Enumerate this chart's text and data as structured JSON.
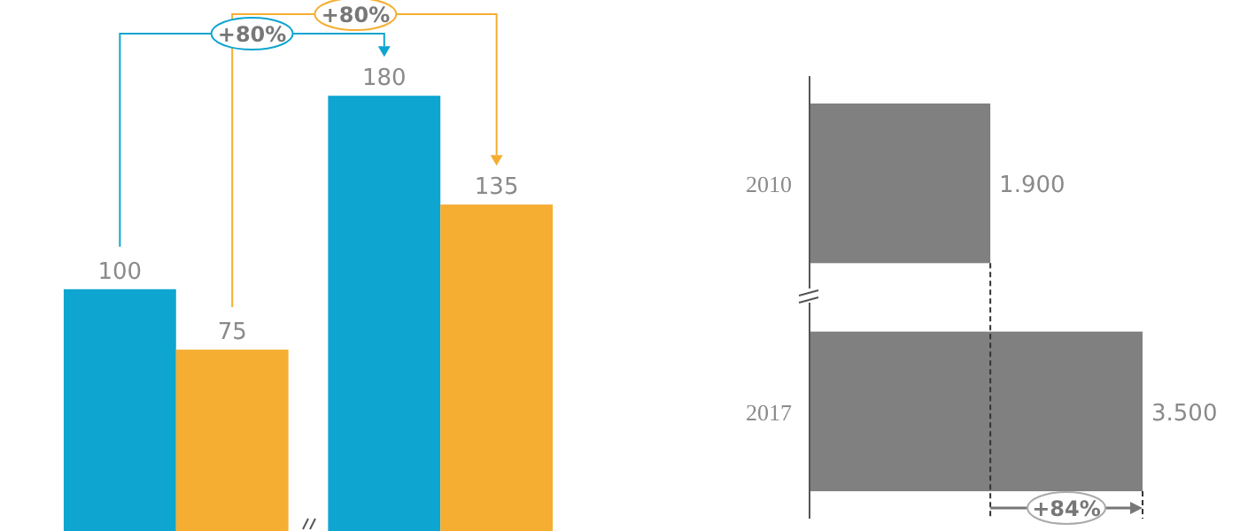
{
  "chart_data": [
    {
      "type": "bar",
      "categories": [
        null,
        null
      ],
      "series": [
        {
          "color": "#0ea5d0",
          "values": [
            100,
            180
          ]
        },
        {
          "color": "#f5ae31",
          "values": [
            75,
            135
          ]
        }
      ],
      "data_labels": true,
      "annotations": [
        "+80%",
        "+80%"
      ]
    },
    {
      "type": "bar",
      "orientation": "horizontal",
      "categories": [
        "2010",
        "2017"
      ],
      "values": [
        1900,
        3500
      ],
      "color": "#808080",
      "value_labels": [
        "1.900",
        "3.500"
      ],
      "annotations": [
        "+84%"
      ]
    }
  ]
}
